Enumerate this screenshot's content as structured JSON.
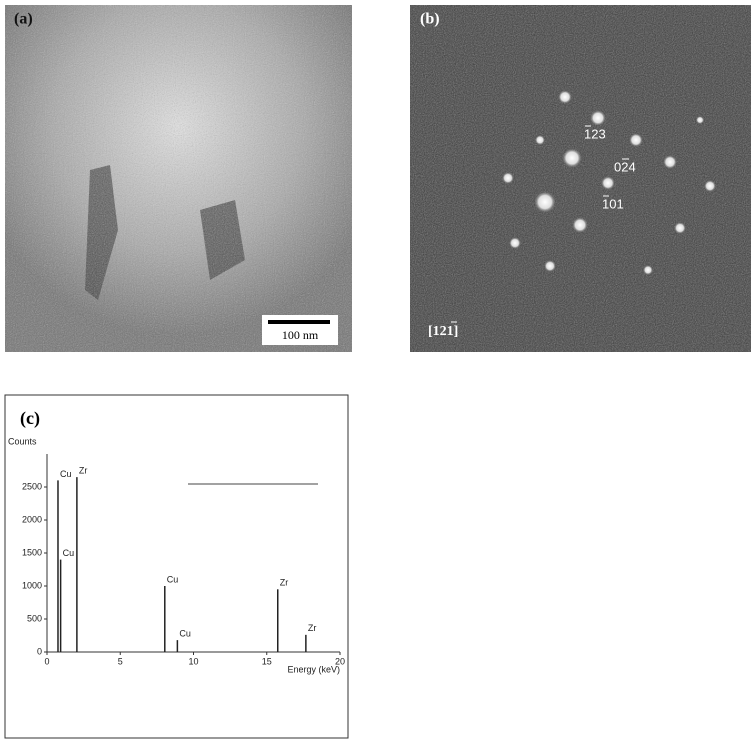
{
  "panel_a": {
    "label": "(a)",
    "scale_bar": "100 nm"
  },
  "panel_b": {
    "label": "(b)",
    "spots": [
      "123",
      "024",
      "101"
    ],
    "zone_axis": "[121]"
  },
  "chart_data": {
    "type": "stem",
    "panel_label": "(c)",
    "y_label": "Counts",
    "x_label": "Energy (keV)",
    "x": [
      0.75,
      0.93,
      2.04,
      8.04,
      8.9,
      15.75,
      17.67
    ],
    "values": [
      2600,
      1400,
      2650,
      1000,
      180,
      950,
      260
    ],
    "peak_labels": [
      "Cu",
      "Cu",
      "Zr",
      "Cu",
      "Cu",
      "Zr",
      "Zr"
    ],
    "color": "#222222",
    "xlim": [
      0,
      20
    ],
    "xticks": [
      0,
      5,
      10,
      15,
      20
    ],
    "ylim": [
      0,
      3000
    ],
    "yticks": [
      0,
      500,
      1000,
      1500,
      2000,
      2500
    ]
  }
}
